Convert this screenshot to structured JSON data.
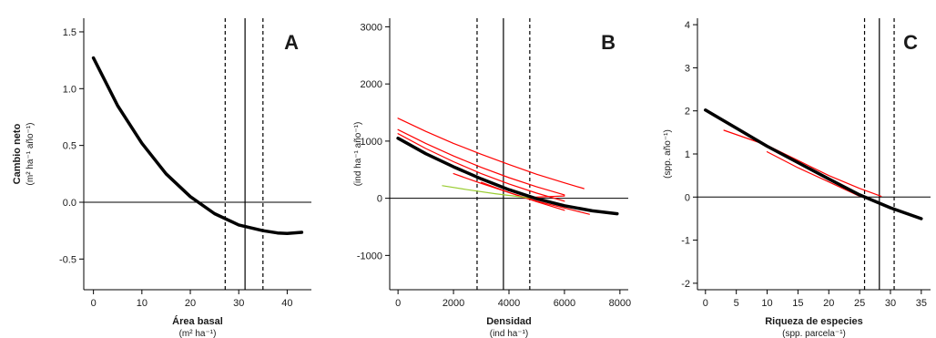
{
  "chart_data": [
    {
      "type": "line",
      "panel_label": "A",
      "xlabel": "Área basal",
      "xlabel_units": "(m² ha⁻¹)",
      "ylabel": "Cambio neto",
      "ylabel_units": "(m² ha⁻¹ año⁻¹)",
      "xlim": [
        -2,
        45
      ],
      "ylim": [
        -0.77,
        1.62
      ],
      "xticks": [
        0,
        10,
        20,
        30,
        40
      ],
      "xtick_labels": [
        "0",
        "10",
        "20",
        "30",
        "40"
      ],
      "yticks": [
        -0.5,
        0.0,
        0.5,
        1.0,
        1.5
      ],
      "ytick_labels": [
        "-0.5",
        "0.0",
        "0.5",
        "1.0",
        "1.5"
      ],
      "zero_line": 0,
      "vertical_lines": [
        {
          "x": 31.3,
          "style": "solid"
        },
        {
          "x": 27.2,
          "style": "dashed"
        },
        {
          "x": 35.0,
          "style": "dashed"
        }
      ],
      "series": [
        {
          "color": "#000000",
          "x": [
            0,
            5,
            10,
            15,
            20,
            25,
            30,
            35,
            38,
            40,
            43
          ],
          "y": [
            1.27,
            0.85,
            0.52,
            0.25,
            0.05,
            -0.1,
            -0.2,
            -0.25,
            -0.27,
            -0.275,
            -0.265
          ]
        }
      ]
    },
    {
      "type": "line",
      "panel_label": "B",
      "xlabel": "Densidad",
      "xlabel_units": "(ind ha⁻¹)",
      "ylabel": "",
      "ylabel_units": "(ind ha⁻¹ año⁻¹)",
      "xlim": [
        -300,
        8300
      ],
      "ylim": [
        -1600,
        3150
      ],
      "xticks": [
        0,
        2000,
        4000,
        6000,
        8000
      ],
      "xtick_labels": [
        "0",
        "2000",
        "4000",
        "6000",
        "8000"
      ],
      "yticks": [
        -1000,
        0,
        1000,
        2000,
        3000
      ],
      "ytick_labels": [
        "-1000",
        "0",
        "1000",
        "2000",
        "3000"
      ],
      "zero_line": 0,
      "vertical_lines": [
        {
          "x": 3800,
          "style": "solid"
        },
        {
          "x": 2850,
          "style": "dashed"
        },
        {
          "x": 4750,
          "style": "dashed"
        }
      ],
      "series": [
        {
          "color": "#000000",
          "x": [
            0,
            1000,
            2000,
            3000,
            4000,
            5000,
            6000,
            7000,
            7900
          ],
          "y": [
            1050,
            780,
            550,
            340,
            150,
            -10,
            -130,
            -220,
            -270
          ]
        },
        {
          "color": "#ff0000",
          "x": [
            0,
            1000,
            2000,
            3000,
            4000,
            5000,
            6000,
            6700
          ],
          "y": [
            1400,
            1170,
            960,
            770,
            590,
            420,
            270,
            170
          ]
        },
        {
          "color": "#ff0000",
          "x": [
            0,
            1000,
            2000,
            3000,
            4000,
            5000,
            6000
          ],
          "y": [
            1200,
            960,
            740,
            540,
            360,
            200,
            60
          ]
        },
        {
          "color": "#ff0000",
          "x": [
            0,
            1000,
            2000,
            3000,
            4000,
            5000,
            6000
          ],
          "y": [
            1130,
            870,
            640,
            430,
            250,
            90,
            -50
          ]
        },
        {
          "color": "#ff0000",
          "x": [
            2000,
            3000,
            4000,
            5000,
            6000,
            6900
          ],
          "y": [
            430,
            260,
            100,
            -50,
            -170,
            -280
          ]
        },
        {
          "color": "#ff0000",
          "x": [
            3000,
            4000,
            5000,
            6000
          ],
          "y": [
            280,
            100,
            -60,
            -210
          ]
        },
        {
          "color": "#ff0000",
          "x": [
            4500,
            5000,
            5500,
            6000
          ],
          "y": [
            10,
            20,
            30,
            40
          ]
        },
        {
          "color": "#9acd32",
          "x": [
            1600,
            2500,
            3500,
            4500,
            5200
          ],
          "y": [
            220,
            150,
            80,
            20,
            -20
          ]
        }
      ]
    },
    {
      "type": "line",
      "panel_label": "C",
      "xlabel": "Riqueza de especies",
      "xlabel_units": "(spp. parcela⁻¹)",
      "ylabel": "",
      "ylabel_units": "(spp. año⁻¹)",
      "xlim": [
        -1.3,
        36.5
      ],
      "ylim": [
        -2.15,
        4.15
      ],
      "xticks": [
        0,
        5,
        10,
        15,
        20,
        25,
        30,
        35
      ],
      "xtick_labels": [
        "0",
        "5",
        "10",
        "15",
        "20",
        "25",
        "30",
        "35"
      ],
      "yticks": [
        -2,
        -1,
        0,
        1,
        2,
        3,
        4
      ],
      "ytick_labels": [
        "-2",
        "-1",
        "0",
        "1",
        "2",
        "3",
        "4"
      ],
      "zero_line": 0,
      "vertical_lines": [
        {
          "x": 28.2,
          "style": "solid"
        },
        {
          "x": 25.8,
          "style": "dashed"
        },
        {
          "x": 30.6,
          "style": "dashed"
        }
      ],
      "series": [
        {
          "color": "#000000",
          "x": [
            0,
            5,
            10,
            15,
            20,
            25,
            30,
            35
          ],
          "y": [
            2.02,
            1.6,
            1.18,
            0.8,
            0.42,
            0.05,
            -0.25,
            -0.5
          ]
        },
        {
          "color": "#ff0000",
          "x": [
            3,
            10,
            15,
            20,
            25,
            28.5
          ],
          "y": [
            1.55,
            1.2,
            0.85,
            0.5,
            0.2,
            0.02
          ]
        },
        {
          "color": "#ff0000",
          "x": [
            10,
            15,
            20,
            25
          ],
          "y": [
            1.05,
            0.68,
            0.35,
            0.02
          ]
        }
      ]
    }
  ]
}
